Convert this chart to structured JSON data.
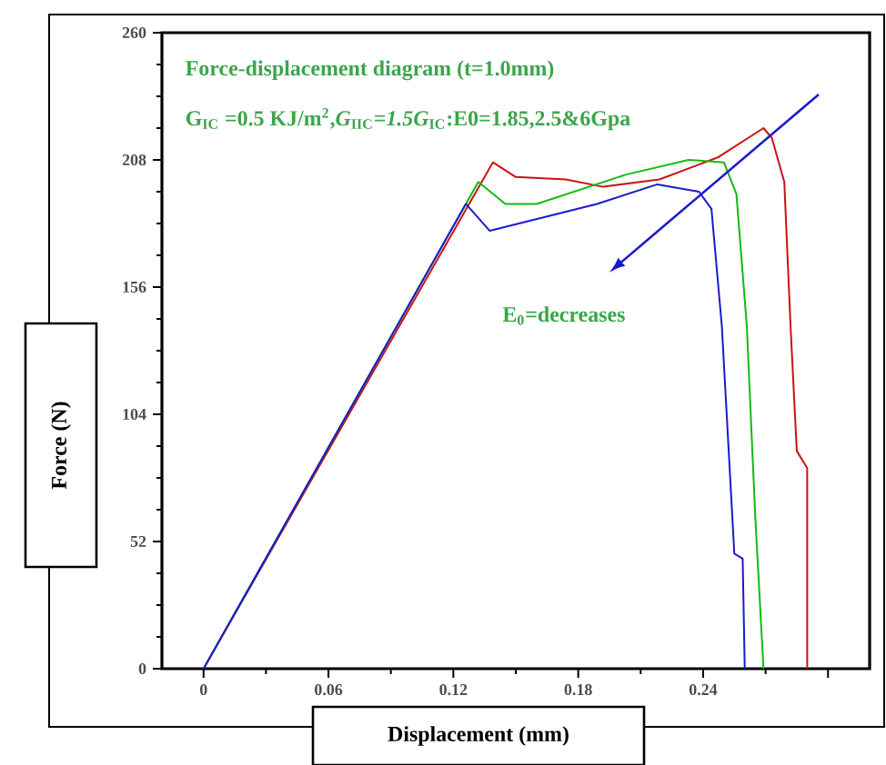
{
  "chart_data": {
    "type": "line",
    "title": "Force-displacement diagram (t=1.0mm)",
    "subtitle": "G$_{IC}$ =0.5 KJ/m$^{2}$,*G*$_{IIC}$*=1.5G*$_{IC}$:E0=1.85,2.5&6Gpa",
    "xlabel": "Displacement (mm)",
    "ylabel": "Force (N)",
    "annotations": [
      "E$_{0}$=decreases"
    ],
    "xlim": [
      -0.02,
      0.32
    ],
    "ylim": [
      0,
      260
    ],
    "xticks": [
      0,
      0.06,
      0.12,
      0.18,
      0.24,
      {
        "value": 0.3,
        "label": null
      }
    ],
    "yticks": [
      0,
      52,
      104,
      156,
      208,
      260
    ],
    "grid": false,
    "series": [
      {
        "color": "#cc1111",
        "x": [
          0,
          0.139,
          0.15,
          0.174,
          0.192,
          0.219,
          0.247,
          0.269,
          0.273,
          0.279,
          0.282,
          0.285,
          0.29,
          0.29
        ],
        "values": [
          0,
          207,
          201,
          200,
          197,
          200,
          209,
          221,
          217,
          199,
          140,
          89,
          82,
          0
        ]
      },
      {
        "color": "#11bb11",
        "x": [
          0,
          0.132,
          0.145,
          0.16,
          0.203,
          0.233,
          0.25,
          0.256,
          0.261,
          0.265,
          0.269
        ],
        "values": [
          0,
          199,
          190,
          190,
          202,
          208,
          207,
          194,
          140,
          63,
          0
        ]
      },
      {
        "color": "#1a1acc",
        "x": [
          0,
          0.126,
          0.1375,
          0.189,
          0.218,
          0.238,
          0.244,
          0.249,
          0.255,
          0.259,
          0.26
        ],
        "values": [
          0,
          190,
          179,
          190,
          198,
          195,
          188,
          140,
          47,
          45,
          0
        ]
      }
    ]
  }
}
